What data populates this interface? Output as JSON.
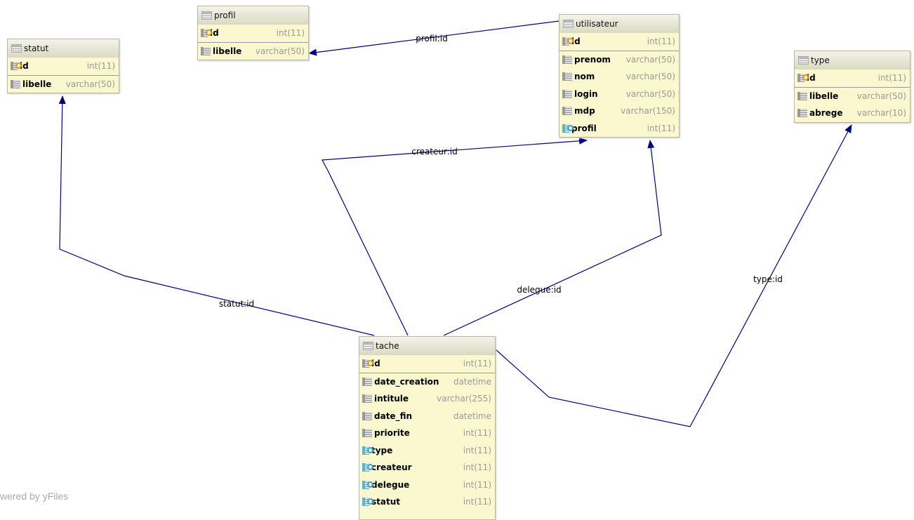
{
  "tables": {
    "statut": {
      "name": "statut",
      "cols": [
        {
          "name": "id",
          "type": "int(11)",
          "kind": "pk"
        },
        {
          "name": "libelle",
          "type": "varchar(50)",
          "kind": "col"
        }
      ]
    },
    "profil": {
      "name": "profil",
      "cols": [
        {
          "name": "id",
          "type": "int(11)",
          "kind": "pk"
        },
        {
          "name": "libelle",
          "type": "varchar(50)",
          "kind": "col"
        }
      ]
    },
    "utilisateur": {
      "name": "utilisateur",
      "cols": [
        {
          "name": "id",
          "type": "int(11)",
          "kind": "pk"
        },
        {
          "name": "prenom",
          "type": "varchar(50)",
          "kind": "col"
        },
        {
          "name": "nom",
          "type": "varchar(50)",
          "kind": "col"
        },
        {
          "name": "login",
          "type": "varchar(50)",
          "kind": "col"
        },
        {
          "name": "mdp",
          "type": "varchar(150)",
          "kind": "col"
        },
        {
          "name": "profil",
          "type": "int(11)",
          "kind": "fk"
        }
      ]
    },
    "type": {
      "name": "type",
      "cols": [
        {
          "name": "id",
          "type": "int(11)",
          "kind": "pk"
        },
        {
          "name": "libelle",
          "type": "varchar(50)",
          "kind": "col"
        },
        {
          "name": "abrege",
          "type": "varchar(10)",
          "kind": "col"
        }
      ]
    },
    "tache": {
      "name": "tache",
      "cols": [
        {
          "name": "id",
          "type": "int(11)",
          "kind": "pk"
        },
        {
          "name": "date_creation",
          "type": "datetime",
          "kind": "col"
        },
        {
          "name": "intitule",
          "type": "varchar(255)",
          "kind": "col"
        },
        {
          "name": "date_fin",
          "type": "datetime",
          "kind": "col"
        },
        {
          "name": "priorite",
          "type": "int(11)",
          "kind": "col"
        },
        {
          "name": "type",
          "type": "int(11)",
          "kind": "fk"
        },
        {
          "name": "createur",
          "type": "int(11)",
          "kind": "fk"
        },
        {
          "name": "delegue",
          "type": "int(11)",
          "kind": "fk"
        },
        {
          "name": "statut",
          "type": "int(11)",
          "kind": "fk"
        }
      ]
    }
  },
  "edges": {
    "profil": "profil:id",
    "createur": "createur:id",
    "delegue": "delegue:id",
    "statut": "statut:id",
    "type": "type:id"
  },
  "edge_color": "#000080",
  "watermark": "wered by yFiles"
}
